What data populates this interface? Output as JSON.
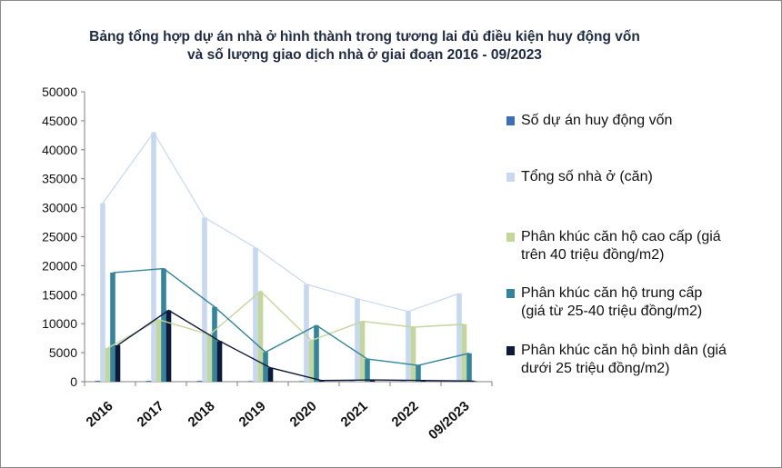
{
  "chart_data": {
    "type": "bar",
    "title_line1": "Bảng tổng hợp dự án nhà ở hình thành trong tương lai đủ điều kiện huy động vốn",
    "title_line2": "và số lượng giao dịch nhà ở giai đoạn 2016 - 09/2023",
    "categories": [
      "2016",
      "2017",
      "2018",
      "2019",
      "2020",
      "2021",
      "2022",
      "09/2023"
    ],
    "ylim": [
      0,
      50000
    ],
    "yticks": [
      "0",
      "5000",
      "10000",
      "15000",
      "20000",
      "25000",
      "30000",
      "35000",
      "40000",
      "45000",
      "50000"
    ],
    "grid": false,
    "legend_position": "right",
    "series": [
      {
        "name": "Số dự án huy động vốn",
        "color": "#3d6fb6",
        "values": [
          150,
          150,
          150,
          100,
          100,
          100,
          100,
          60
        ]
      },
      {
        "name": "Tổng số nhà ở (căn)",
        "color": "#c7d8f0",
        "values": [
          30800,
          43000,
          28300,
          23100,
          16800,
          14300,
          12100,
          15200
        ]
      },
      {
        "name": "Phân khúc căn hộ cao cấp (giá trên 40 triệu đồng/m2)",
        "color": "#c3d69b",
        "values": [
          5800,
          10700,
          8100,
          15600,
          7100,
          10400,
          9400,
          9900
        ]
      },
      {
        "name": "Phân khúc căn hộ trung cấp (giá từ 25-40 triệu đồng/m2)",
        "color": "#31859c",
        "values": [
          18800,
          19500,
          12900,
          5100,
          9700,
          3900,
          2800,
          4900
        ]
      },
      {
        "name": "Phân khúc căn hộ bình dân (giá dưới 25 triệu đồng/m2)",
        "color": "#0f1a3a",
        "values": [
          6300,
          12300,
          7000,
          2400,
          200,
          300,
          200,
          100
        ]
      }
    ],
    "legend_lines": [
      [
        "Số dự án huy động vốn"
      ],
      [
        "Tổng số nhà ở (căn)"
      ],
      [
        "Phân khúc căn hộ cao cấp (giá",
        "trên 40 triệu  đồng/m2)"
      ],
      [
        "Phân khúc căn hộ trung cấp",
        "(giá từ 25-40  triệu  đồng/m2)"
      ],
      [
        "Phân khúc căn hộ bình dân (giá",
        "dưới 25 triệu đồng/m2)"
      ]
    ]
  }
}
